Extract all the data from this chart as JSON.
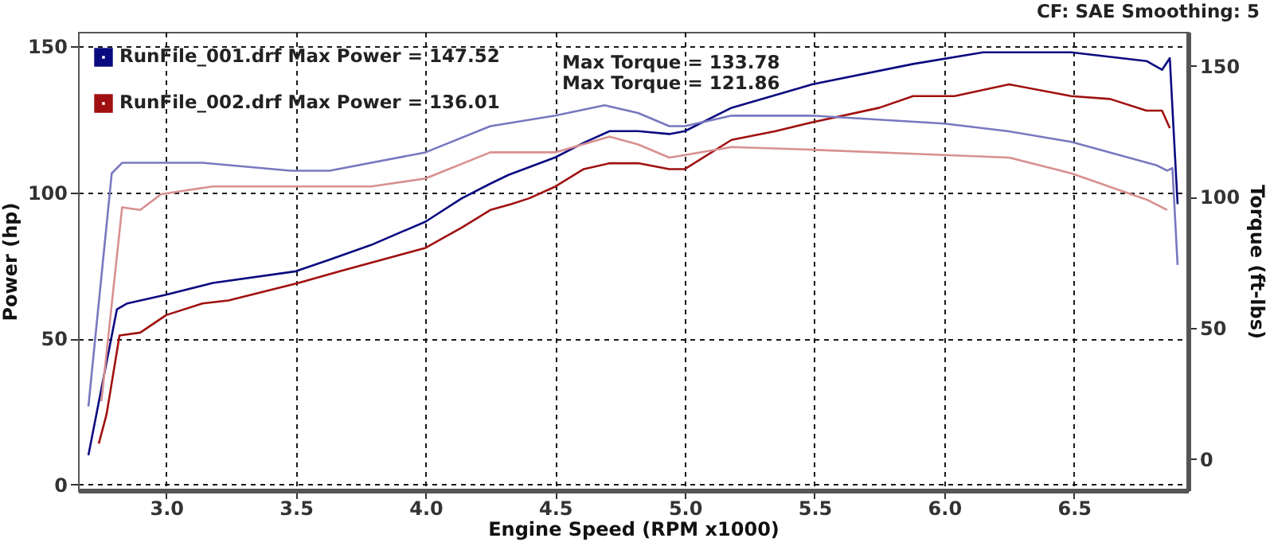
{
  "chart_data": {
    "type": "line",
    "xlabel": "Engine Speed (RPM x1000)",
    "ylabel": "Power (hp)",
    "y2label": "Torque (ft-lbs)",
    "xlim": [
      2.66,
      6.94
    ],
    "xticks": [
      {
        "value": 3,
        "label": "3.0"
      },
      3.5,
      {
        "value": 4,
        "label": "4.0"
      },
      4.5,
      {
        "value": 5,
        "label": "5.0"
      },
      5.5,
      {
        "value": 6,
        "label": "6.0"
      },
      6.5
    ],
    "ylim": [
      -2,
      155
    ],
    "yticks": [
      0,
      50,
      100,
      150
    ],
    "y2lim": [
      -12,
      163
    ],
    "y2ticks": [
      0,
      50,
      100,
      150
    ],
    "grid": true,
    "legend": "top left",
    "line_style": "solid",
    "marker": "none",
    "annotations": [
      "Max Torque = 133.78",
      "Max Torque = 121.86",
      "CF: SAE  Smoothing: 5"
    ],
    "series": [
      {
        "name": "RunFile_001.drf Max Power = 147.52",
        "color": "#0a0a80",
        "x": [
          2.7,
          2.81,
          2.85,
          3.0,
          3.18,
          3.5,
          3.63,
          3.79,
          4.0,
          4.14,
          4.25,
          4.32,
          4.5,
          4.61,
          4.71,
          4.82,
          4.94,
          5.0,
          5.18,
          5.49,
          5.88,
          6.15,
          6.49,
          6.78,
          6.84,
          6.87,
          6.88,
          6.9
        ],
        "values": [
          10,
          60,
          62,
          65,
          69,
          73,
          77,
          82,
          90,
          98,
          103,
          106,
          112,
          117,
          121,
          121,
          120,
          121,
          129,
          137,
          144,
          148,
          148,
          145,
          142,
          146,
          129,
          96
        ]
      },
      {
        "name": "RunFile_002.drf Max Power = 136.01",
        "color": "#a01010",
        "x": [
          2.74,
          2.77,
          2.82,
          2.9,
          3.0,
          3.14,
          3.24,
          3.51,
          3.67,
          4.0,
          4.14,
          4.25,
          4.33,
          4.4,
          4.5,
          4.61,
          4.71,
          4.82,
          4.94,
          5.0,
          5.18,
          5.35,
          5.49,
          5.75,
          5.88,
          6.04,
          6.25,
          6.49,
          6.64,
          6.78,
          6.84,
          6.87
        ],
        "values": [
          14,
          24,
          51,
          52,
          58,
          62,
          63,
          69,
          73,
          81,
          88,
          94,
          96,
          98,
          102,
          108,
          110,
          110,
          108,
          108,
          118,
          121,
          124,
          129,
          133,
          133,
          137,
          133,
          132,
          128,
          128,
          122
        ]
      },
      {
        "color": "#7878c0",
        "axis": "y2",
        "x": [
          2.7,
          2.79,
          2.83,
          2.98,
          3.14,
          3.48,
          3.63,
          4.0,
          4.25,
          4.5,
          4.69,
          4.82,
          4.94,
          5.0,
          5.18,
          5.49,
          6.0,
          6.25,
          6.49,
          6.82,
          6.86,
          6.88,
          6.9
        ],
        "values": [
          20,
          109,
          113,
          113,
          113,
          110,
          110,
          117,
          127,
          131,
          135,
          132,
          127,
          127,
          131,
          131,
          128,
          125,
          121,
          112,
          110,
          111,
          74
        ]
      },
      {
        "color": "#d89090",
        "axis": "y2",
        "x": [
          2.75,
          2.83,
          2.9,
          2.98,
          3.18,
          3.51,
          3.79,
          4.0,
          4.25,
          4.5,
          4.71,
          4.82,
          4.94,
          5.0,
          5.18,
          5.49,
          6.0,
          6.25,
          6.49,
          6.78,
          6.86
        ],
        "values": [
          22,
          96,
          95,
          101,
          104,
          104,
          104,
          107,
          117,
          117,
          123,
          120,
          115,
          116,
          119,
          118,
          116,
          115,
          109,
          99,
          95
        ]
      }
    ]
  }
}
